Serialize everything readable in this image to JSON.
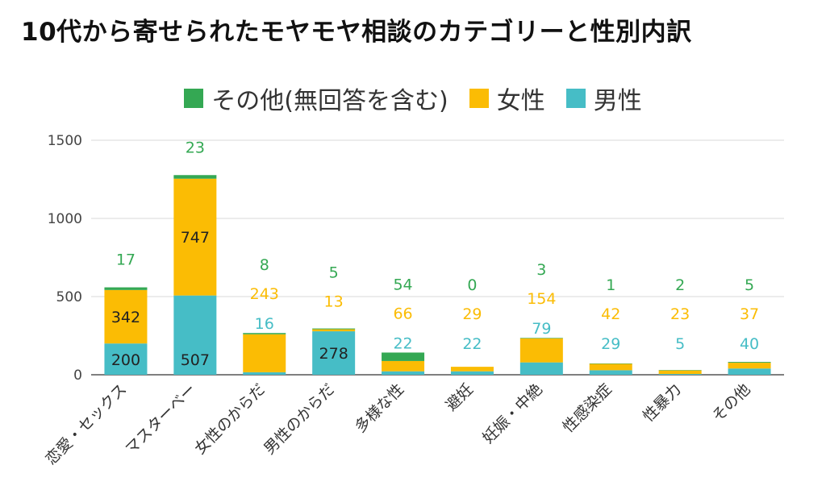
{
  "title": "10代から寄せられたモヤモヤ相談のカテゴリーと性別内訳",
  "chart_data": {
    "type": "bar",
    "stacked": true,
    "categories": [
      "恋愛・セックス",
      "マスターベー",
      "女性のからだ",
      "男性のからだ",
      "多様な性",
      "避妊",
      "妊娠・中絶",
      "性感染症",
      "性暴力",
      "その他"
    ],
    "series": [
      {
        "name": "男性",
        "color": "#46bdc6",
        "values": [
          200,
          507,
          16,
          278,
          22,
          22,
          79,
          29,
          5,
          40
        ]
      },
      {
        "name": "女性",
        "color": "#fbbc04",
        "values": [
          342,
          747,
          243,
          13,
          66,
          29,
          154,
          42,
          23,
          37
        ]
      },
      {
        "name": "その他(無回答を含む)",
        "color": "#34a853",
        "values": [
          17,
          23,
          8,
          5,
          54,
          0,
          3,
          1,
          2,
          5
        ]
      }
    ],
    "legend_order": [
      "その他(無回答を含む)",
      "女性",
      "男性"
    ],
    "y_ticks": [
      0,
      500,
      1000,
      1500
    ],
    "ylim": [
      0,
      1500
    ],
    "grid": true,
    "legend_position": "top",
    "label_colors": {
      "男性": "#46bdc6",
      "女性": "#fbbc04",
      "その他(無回答を含む)": "#34a853",
      "inside": "#222222"
    }
  }
}
